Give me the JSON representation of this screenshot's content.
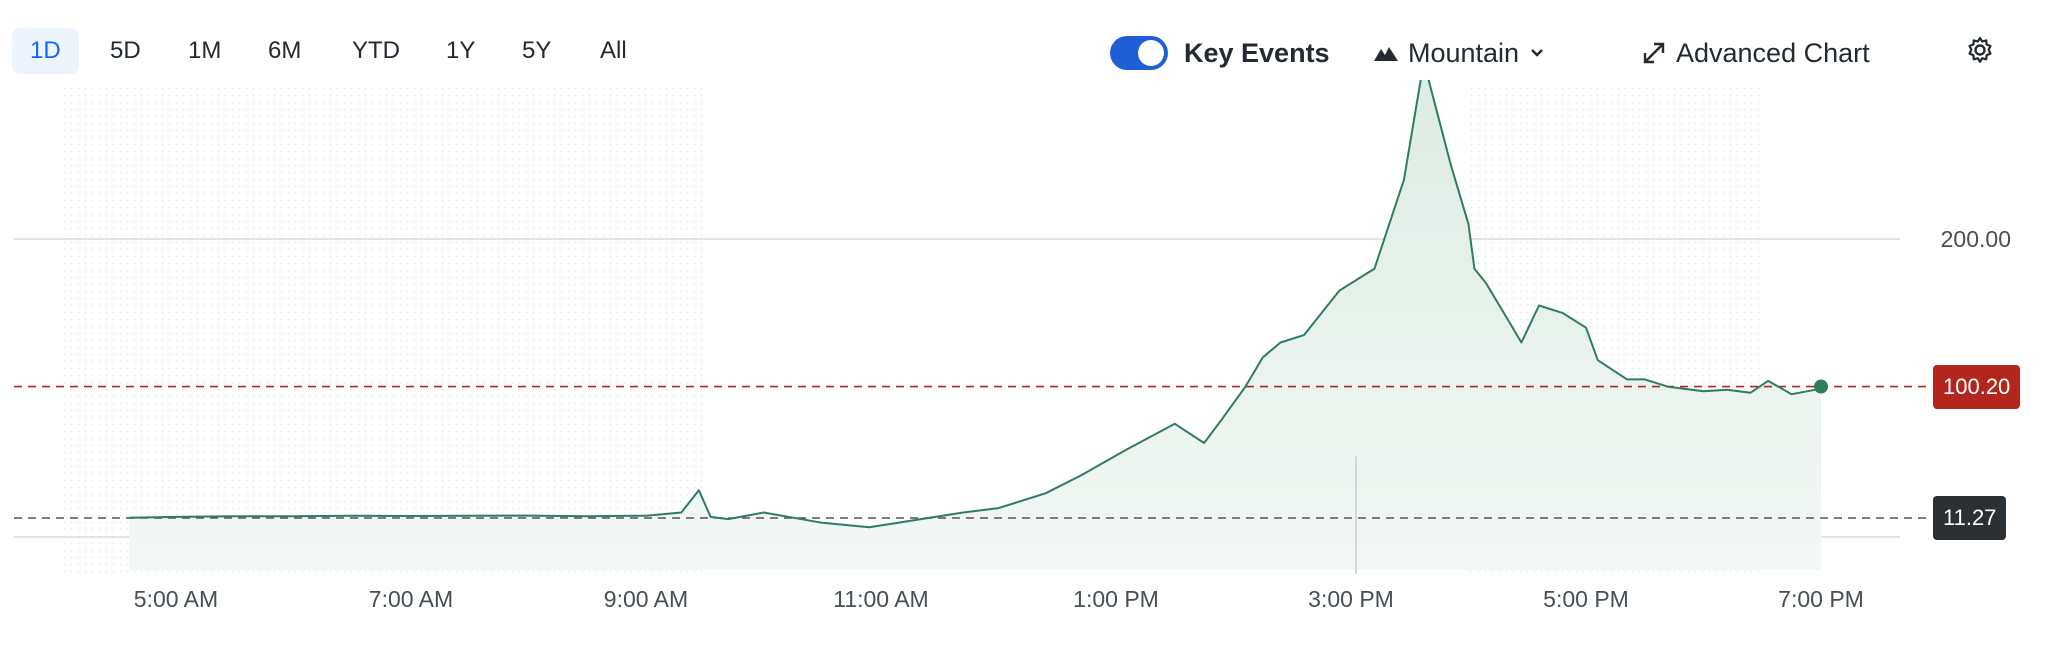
{
  "toolbar": {
    "ranges": [
      "1D",
      "5D",
      "1M",
      "6M",
      "YTD",
      "1Y",
      "5Y",
      "All"
    ],
    "active_range": "1D",
    "key_events_label": "Key Events",
    "key_events_on": true,
    "chart_type_label": "Mountain",
    "advanced_chart_label": "Advanced Chart",
    "icons": {
      "chart_type": "mountain-icon",
      "dropdown": "chevron-down-icon",
      "advanced": "expand-arrows-icon",
      "settings": "gear-icon"
    }
  },
  "price_tags": {
    "current": "100.20",
    "previous_close": "11.27",
    "current_color": "#b3261e",
    "previous_close_color": "#2a3033"
  },
  "chart_data": {
    "type": "area",
    "x_ticks": [
      "5:00 AM",
      "7:00 AM",
      "9:00 AM",
      "11:00 AM",
      "1:00 PM",
      "3:00 PM",
      "5:00 PM",
      "7:00 PM"
    ],
    "y_tick_labels": [
      "200.00"
    ],
    "y_ticks": [
      200
    ],
    "ylim": [
      0,
      330
    ],
    "xlim_hours": [
      4.33,
      20.0
    ],
    "grid": "horizontal",
    "line_color": "#2e7d5b",
    "fill_color": "#e3efe9",
    "reference_lines": [
      {
        "value": 100.2,
        "color": "#b3261e",
        "label": "100.20"
      },
      {
        "value": 11.27,
        "color": "#555555",
        "label": "11.27"
      }
    ],
    "shaded_sessions": [
      {
        "name": "pre-market",
        "from_hour": 4.0,
        "to_hour": 9.5
      },
      {
        "name": "after-hours",
        "from_hour": 16.0,
        "to_hour": 20.0
      }
    ],
    "x_hours": [
      4.6,
      5.0,
      5.5,
      6.0,
      6.5,
      7.0,
      7.5,
      8.0,
      8.5,
      9.0,
      9.3,
      9.45,
      9.55,
      9.7,
      10.0,
      10.5,
      10.9,
      11.3,
      11.7,
      12.0,
      12.4,
      12.7,
      13.1,
      13.5,
      13.75,
      13.9,
      14.1,
      14.25,
      14.4,
      14.6,
      14.8,
      14.9,
      15.2,
      15.45,
      15.62,
      15.85,
      16.0,
      16.05,
      16.15,
      16.3,
      16.45,
      16.6,
      16.8,
      17.0,
      17.1,
      17.35,
      17.5,
      17.7,
      18.0,
      18.2,
      18.4,
      18.55,
      18.75,
      18.95,
      19.0
    ],
    "values": [
      11.5,
      12.0,
      12.5,
      12.5,
      12.8,
      12.6,
      12.8,
      12.9,
      12.5,
      12.8,
      15.0,
      30.0,
      12.0,
      10.5,
      15.0,
      8.0,
      5.0,
      10.0,
      15.0,
      18.0,
      28.0,
      40.0,
      58.0,
      75.0,
      62.0,
      78.0,
      100.0,
      120.0,
      130.0,
      135.0,
      155.0,
      165.0,
      180.0,
      240.0,
      320.0,
      250.0,
      210.0,
      180.0,
      170.0,
      150.0,
      130.0,
      155.0,
      150.0,
      140.0,
      118.0,
      105.0,
      105.0,
      100.0,
      97.0,
      98.0,
      96.0,
      104.0,
      95.0,
      98.0,
      100.2
    ]
  }
}
